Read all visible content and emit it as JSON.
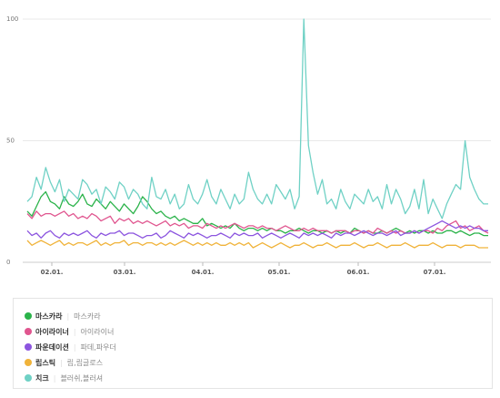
{
  "chart_data": {
    "type": "line",
    "ylim": [
      0,
      100
    ],
    "yticks": [
      "0",
      "50",
      "100"
    ],
    "xtick_labels": [
      "02.01.",
      "03.01.",
      "04.01.",
      "05.01.",
      "06.01.",
      "07.01."
    ],
    "grid": true,
    "legend_placement": "bottom",
    "series": [
      {
        "name": "마스카라",
        "terms": "마스카라",
        "color": "#2bb34a",
        "values": [
          21,
          19,
          23,
          27,
          29,
          25,
          24,
          22,
          27,
          24,
          23,
          25,
          28,
          24,
          23,
          26,
          24,
          22,
          25,
          23,
          21,
          24,
          22,
          20,
          23,
          27,
          25,
          22,
          20,
          21,
          19,
          18,
          19,
          17,
          18,
          17,
          16,
          16,
          18,
          15,
          16,
          15,
          14,
          15,
          14,
          16,
          14,
          13,
          14,
          14,
          13,
          14,
          13,
          14,
          13,
          13,
          12,
          13,
          13,
          14,
          13,
          12,
          13,
          13,
          12,
          13,
          12,
          13,
          12,
          13,
          12,
          14,
          13,
          12,
          13,
          12,
          12,
          13,
          12,
          13,
          14,
          13,
          12,
          13,
          12,
          13,
          13,
          12,
          13,
          12,
          12,
          13,
          13,
          12,
          13,
          12,
          11,
          12,
          12,
          11,
          11
        ]
      },
      {
        "name": "아이라이너",
        "terms": "아이라이너",
        "color": "#e0558f",
        "values": [
          20,
          18,
          21,
          19,
          20,
          20,
          19,
          20,
          21,
          19,
          20,
          18,
          19,
          18,
          20,
          19,
          17,
          18,
          19,
          16,
          18,
          17,
          18,
          16,
          17,
          16,
          17,
          16,
          15,
          16,
          17,
          15,
          16,
          15,
          16,
          14,
          15,
          15,
          14,
          16,
          15,
          14,
          15,
          14,
          15,
          16,
          15,
          14,
          15,
          15,
          14,
          15,
          14,
          14,
          13,
          14,
          15,
          14,
          13,
          13,
          14,
          13,
          14,
          13,
          13,
          13,
          12,
          13,
          13,
          13,
          12,
          13,
          13,
          12,
          13,
          12,
          14,
          13,
          12,
          13,
          12,
          13,
          12,
          12,
          13,
          12,
          13,
          13,
          12,
          14,
          13,
          15,
          16,
          17,
          14,
          15,
          13,
          14,
          15,
          13,
          12
        ]
      },
      {
        "name": "파운데이션",
        "terms": "파데,파우더",
        "color": "#8c55df",
        "values": [
          13,
          11,
          12,
          10,
          12,
          13,
          11,
          10,
          12,
          11,
          12,
          11,
          12,
          13,
          11,
          10,
          12,
          11,
          12,
          12,
          13,
          11,
          12,
          12,
          11,
          10,
          11,
          11,
          12,
          10,
          11,
          13,
          12,
          11,
          10,
          12,
          11,
          12,
          11,
          10,
          11,
          11,
          12,
          11,
          10,
          12,
          11,
          12,
          11,
          11,
          12,
          10,
          11,
          12,
          11,
          10,
          11,
          12,
          11,
          10,
          12,
          11,
          12,
          11,
          12,
          11,
          10,
          12,
          11,
          12,
          12,
          11,
          12,
          13,
          12,
          11,
          12,
          12,
          11,
          12,
          13,
          11,
          12,
          12,
          13,
          12,
          13,
          14,
          15,
          16,
          17,
          16,
          15,
          14,
          15,
          14,
          15,
          14,
          14,
          13,
          13
        ]
      },
      {
        "name": "립스틱",
        "terms": "립,립글로스",
        "color": "#f0b33a",
        "values": [
          9,
          7,
          8,
          9,
          8,
          7,
          8,
          9,
          7,
          8,
          7,
          8,
          8,
          7,
          8,
          9,
          7,
          8,
          7,
          8,
          8,
          9,
          7,
          8,
          8,
          7,
          8,
          8,
          7,
          8,
          7,
          8,
          7,
          8,
          9,
          8,
          7,
          8,
          7,
          8,
          7,
          8,
          7,
          7,
          8,
          7,
          8,
          7,
          8,
          6,
          7,
          8,
          7,
          6,
          7,
          8,
          7,
          6,
          7,
          7,
          8,
          7,
          6,
          7,
          7,
          8,
          7,
          6,
          7,
          7,
          7,
          8,
          7,
          6,
          7,
          7,
          8,
          7,
          6,
          7,
          7,
          7,
          8,
          7,
          6,
          7,
          7,
          7,
          8,
          7,
          6,
          7,
          7,
          7,
          6,
          7,
          7,
          7,
          6,
          6,
          6
        ]
      },
      {
        "name": "치크",
        "terms": "블러쉬,블러셔",
        "color": "#6fd1c5",
        "values": [
          25,
          27,
          35,
          30,
          39,
          33,
          29,
          34,
          25,
          30,
          28,
          26,
          34,
          32,
          28,
          30,
          24,
          31,
          29,
          26,
          33,
          31,
          26,
          30,
          28,
          24,
          22,
          35,
          27,
          26,
          30,
          24,
          28,
          22,
          24,
          32,
          26,
          24,
          28,
          34,
          27,
          24,
          30,
          26,
          22,
          28,
          24,
          26,
          37,
          30,
          26,
          24,
          28,
          24,
          32,
          29,
          26,
          30,
          22,
          27,
          100,
          48,
          37,
          28,
          34,
          24,
          26,
          22,
          30,
          25,
          22,
          28,
          26,
          24,
          30,
          25,
          27,
          22,
          32,
          24,
          30,
          26,
          20,
          23,
          30,
          22,
          34,
          20,
          26,
          22,
          18,
          24,
          28,
          32,
          30,
          50,
          35,
          30,
          26,
          24,
          24
        ]
      }
    ]
  }
}
